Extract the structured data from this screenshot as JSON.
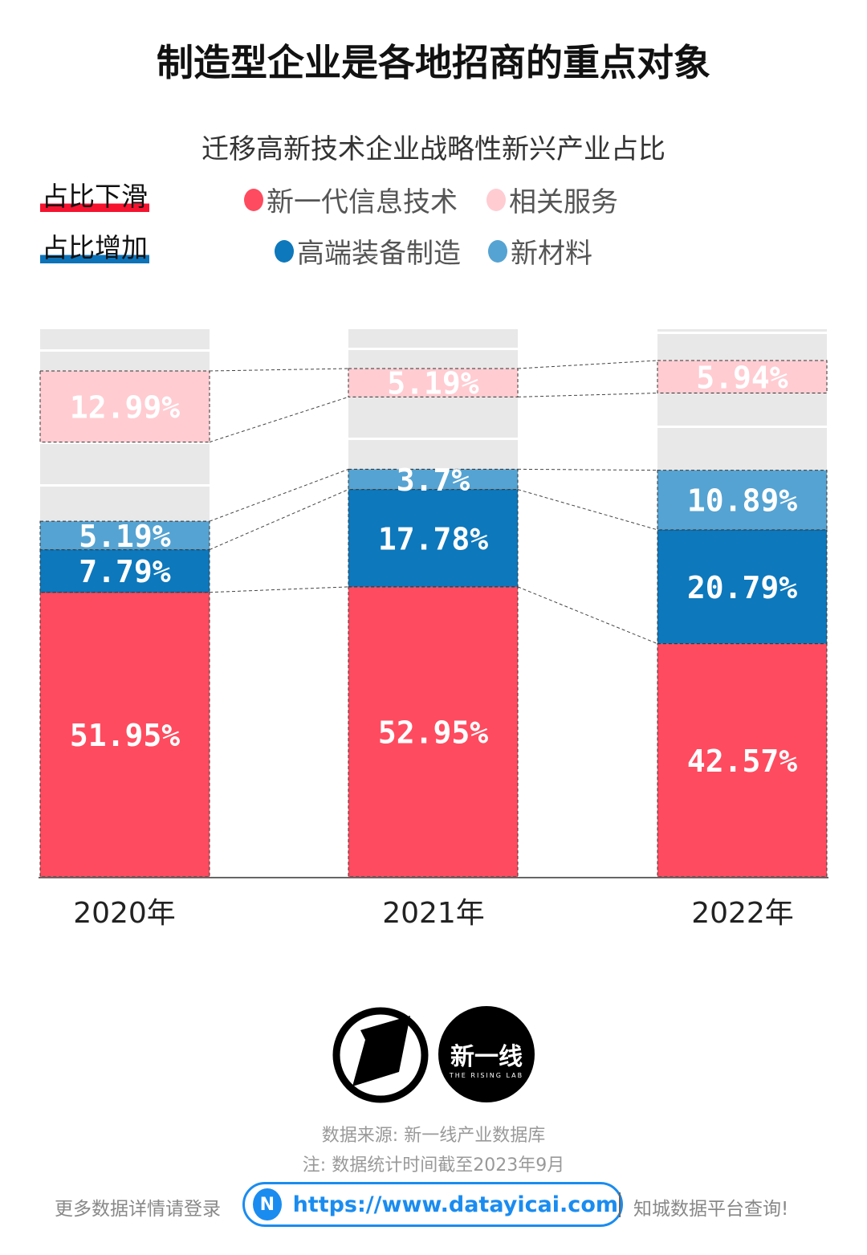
{
  "title": "制造型企业是各地招商的重点对象",
  "chart_data": {
    "type": "bar",
    "stacked": true,
    "title": "迁移高新技术企业战略性新兴产业占比",
    "categories": [
      "2020年",
      "2021年",
      "2022年"
    ],
    "series": [
      {
        "name": "新一代信息技术",
        "color": "#ff4b5f",
        "values": [
          51.95,
          52.95,
          42.57
        ],
        "labels": [
          "51.95%",
          "52.95%",
          "42.57%"
        ]
      },
      {
        "name": "高端装备制造",
        "color": "#0d78bc",
        "values": [
          7.79,
          17.78,
          20.79
        ],
        "labels": [
          "7.79%",
          "17.78%",
          "20.79%"
        ]
      },
      {
        "name": "新材料",
        "color": "#55a3d2",
        "values": [
          5.19,
          3.7,
          10.89
        ],
        "labels": [
          "5.19%",
          "3.7%",
          "10.89%"
        ]
      },
      {
        "name": "相关服务",
        "color": "#ffccd2",
        "values": [
          12.99,
          5.19,
          5.94
        ],
        "labels": [
          "12.99%",
          "5.19%",
          "5.94%"
        ]
      }
    ],
    "ylim": [
      0,
      100
    ],
    "background_color": "#e8e8e8",
    "grid": false,
    "legend_position": "top"
  },
  "trend_labels": {
    "down": "占比下滑",
    "up": "占比增加"
  },
  "footer": {
    "logo_text": "新一线",
    "logo_subtext": "THE RISING LAB",
    "source": "数据来源: 新一线产业数据库",
    "note": "注: 数据统计时间截至2023年9月",
    "left_text": "更多数据详情请登录",
    "url": "https://www.datayicai.com",
    "right_text": "知城数据平台查询!"
  }
}
